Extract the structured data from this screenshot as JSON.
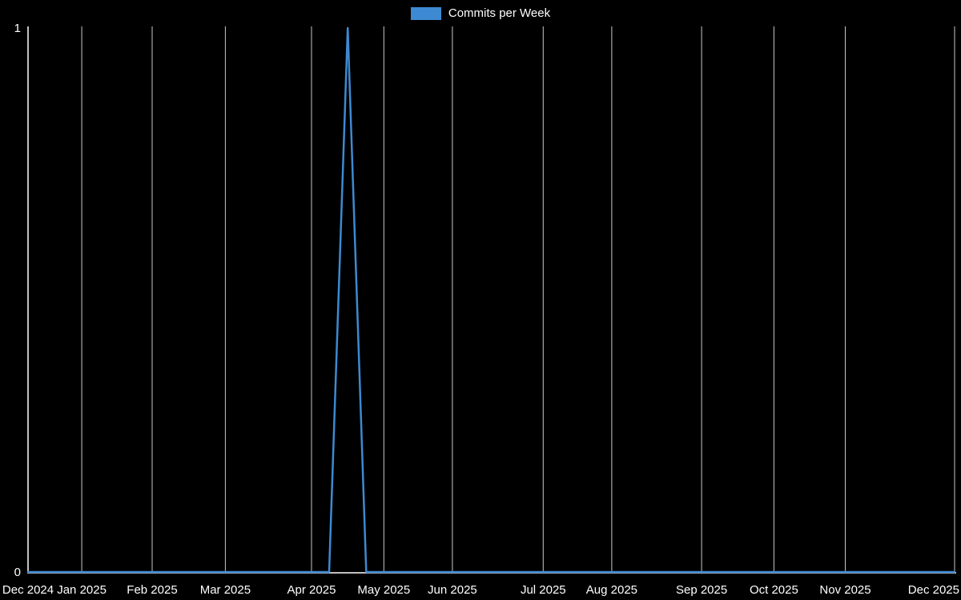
{
  "chart_data": {
    "type": "line",
    "title": "Commits per Week",
    "legend": [
      {
        "label": "Commits per Week",
        "color": "#3d8ad2"
      }
    ],
    "legend_position": "top-center",
    "background_color": "#000000",
    "text_color": "#ffffff",
    "axis_color": "#ffffff",
    "grid_color": "#c9c9c9",
    "grid": "vertical gridlines at each month tick",
    "ylim": [
      0,
      1
    ],
    "y_ticks": [
      {
        "label": "0",
        "value": 0
      },
      {
        "label": "1",
        "value": 1
      }
    ],
    "x_ticks": [
      {
        "label": "Dec 2024",
        "f": 0
      },
      {
        "label": "Jan 2025",
        "f": 0.058
      },
      {
        "label": "Feb 2025",
        "f": 0.134
      },
      {
        "label": "Mar 2025",
        "f": 0.213
      },
      {
        "label": "Apr 2025",
        "f": 0.306
      },
      {
        "label": "May 2025",
        "f": 0.384
      },
      {
        "label": "Jun 2025",
        "f": 0.458
      },
      {
        "label": "Jul 2025",
        "f": 0.556
      },
      {
        "label": "Aug 2025",
        "f": 0.63
      },
      {
        "label": "Sep 2025",
        "f": 0.727
      },
      {
        "label": "Oct 2025",
        "f": 0.805
      },
      {
        "label": "Nov 2025",
        "f": 0.882
      },
      {
        "label": "Dec 2025",
        "f": 1
      }
    ],
    "series": [
      {
        "name": "Commits per Week",
        "color": "#3d8ad2",
        "points": [
          {
            "x_approx": "Dec 2024 (axis start)",
            "value": 0,
            "f": 0
          },
          {
            "x_approx": "early Apr 2025",
            "value": 0,
            "f": 0.325
          },
          {
            "x_approx": "mid Apr 2025",
            "value": 1,
            "f": 0.345
          },
          {
            "x_approx": "late Apr 2025",
            "value": 0,
            "f": 0.365
          },
          {
            "x_approx": "Dec 2025 (axis end)",
            "value": 0,
            "f": 1
          }
        ],
        "summary": "All weeks are 0 commits except a single spike of 1 commit in mid-April 2025."
      }
    ]
  }
}
